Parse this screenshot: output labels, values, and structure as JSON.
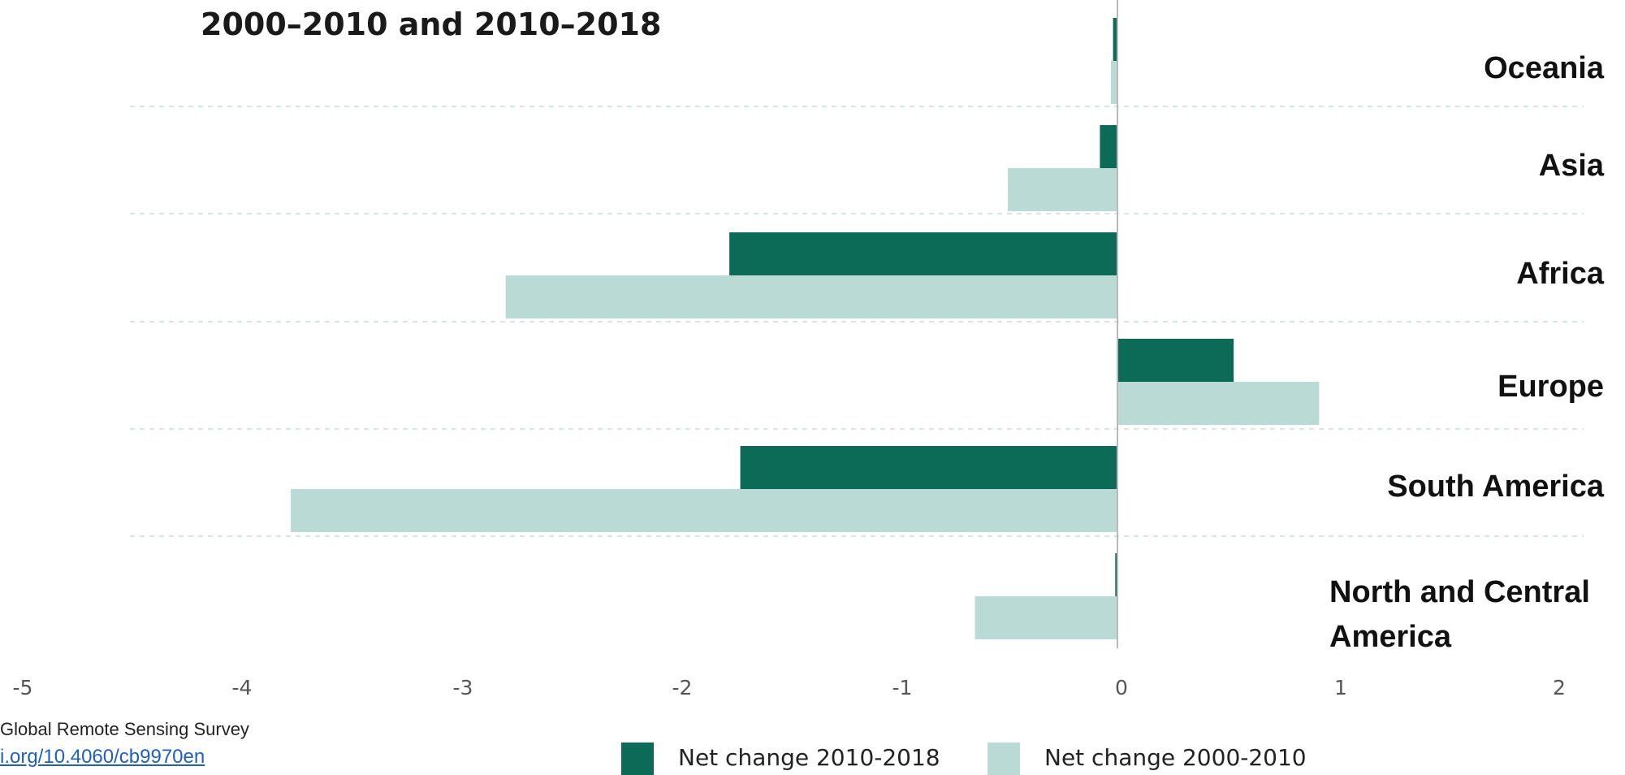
{
  "chart_data": {
    "type": "bar",
    "orientation": "horizontal",
    "title": "2000–2010 and 2010–2018",
    "categories": [
      "Oceania",
      "Asia",
      "Africa",
      "Europe",
      "South America",
      "North and Central America"
    ],
    "series": [
      {
        "name": "Net change 2010-2018",
        "color": "#0b6b56",
        "values": [
          -0.02,
          -0.08,
          -1.77,
          0.53,
          -1.72,
          -0.01
        ]
      },
      {
        "name": "Net change 2000-2010",
        "color": "#badbd5",
        "values": [
          -0.03,
          -0.5,
          -2.79,
          0.92,
          -3.77,
          -0.65
        ]
      }
    ],
    "xlim": [
      -5,
      2
    ],
    "xticks": [
      "-5",
      "-4",
      "-3",
      "-2",
      "-1",
      "0",
      "1",
      "2"
    ],
    "grid": true,
    "legend_position": "bottom"
  },
  "footer": {
    "source": "Global Remote Sensing Survey",
    "doi": "i.org/10.4060/cb9970en"
  }
}
